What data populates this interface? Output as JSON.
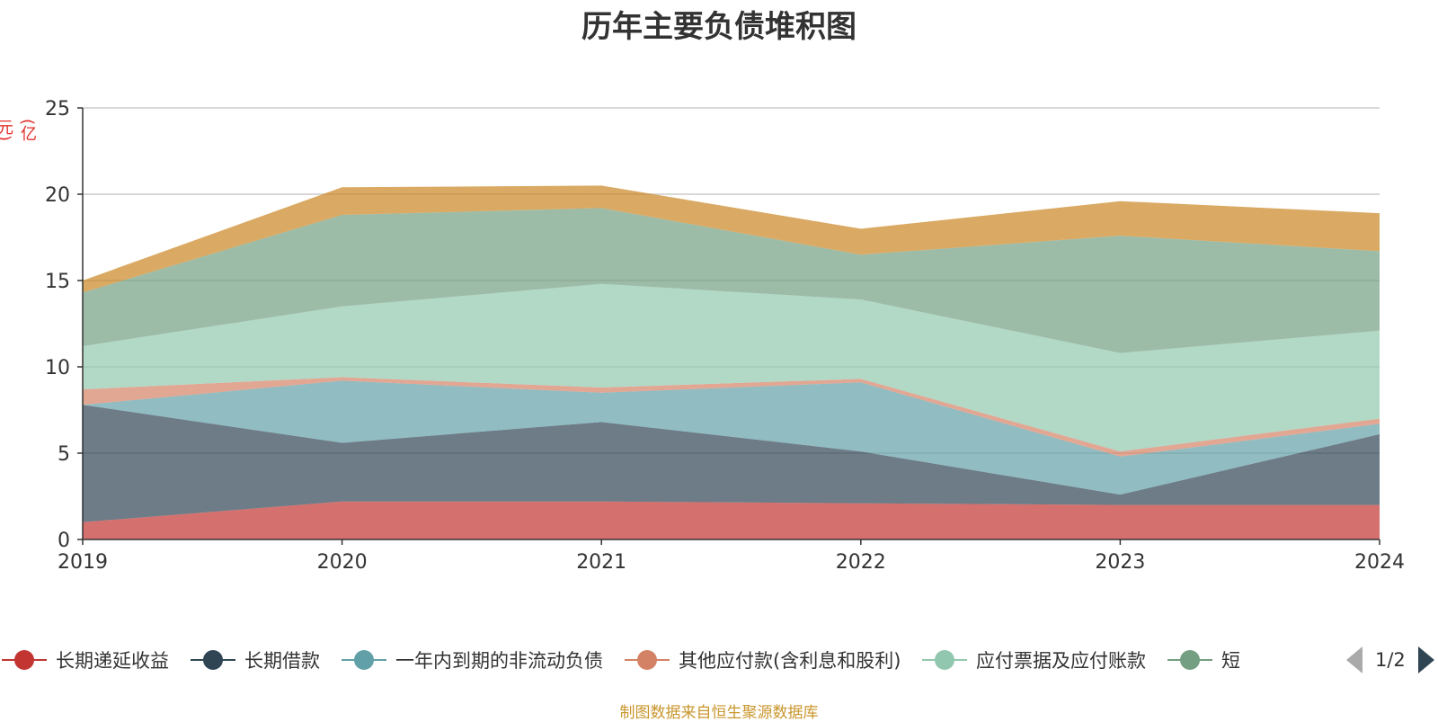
{
  "title": "历年主要负债堆积图",
  "unit": "(亿元)",
  "source_note": "制图数据来自恒生聚源数据库",
  "legend_page": "1/2",
  "chart_data": {
    "type": "area",
    "stacked": true,
    "title": "历年主要负债堆积图",
    "ylabel": "(亿元)",
    "categories": [
      "2019",
      "2020",
      "2021",
      "2022",
      "2023",
      "2024"
    ],
    "ylim": [
      0,
      25
    ],
    "yticks": [
      0,
      5,
      10,
      15,
      20,
      25
    ],
    "grid": true,
    "legend_position": "bottom",
    "series": [
      {
        "name": "长期递延收益",
        "color": "#c23531",
        "values": [
          1.0,
          2.2,
          2.2,
          2.1,
          2.0,
          2.0
        ]
      },
      {
        "name": "长期借款",
        "color": "#2f4554",
        "values": [
          6.8,
          3.4,
          4.6,
          3.0,
          0.6,
          4.1
        ]
      },
      {
        "name": "一年内到期的非流动负债",
        "color": "#61a0a8",
        "values": [
          0.0,
          3.6,
          1.7,
          4.0,
          2.2,
          0.6
        ]
      },
      {
        "name": "其他应付款(含利息和股利)",
        "color": "#d48265",
        "values": [
          0.9,
          0.2,
          0.3,
          0.2,
          0.3,
          0.3
        ]
      },
      {
        "name": "应付票据及应付账款",
        "color": "#91c7ae",
        "values": [
          2.5,
          4.1,
          6.0,
          4.6,
          5.7,
          5.1
        ]
      },
      {
        "name": "短期借款",
        "legend_label": "短",
        "color": "#749f83",
        "values": [
          3.1,
          5.3,
          4.4,
          2.6,
          6.8,
          4.6
        ]
      },
      {
        "name": "",
        "color": "#ca8622",
        "values": [
          0.7,
          1.6,
          1.3,
          1.5,
          2.0,
          2.2
        ]
      }
    ]
  }
}
